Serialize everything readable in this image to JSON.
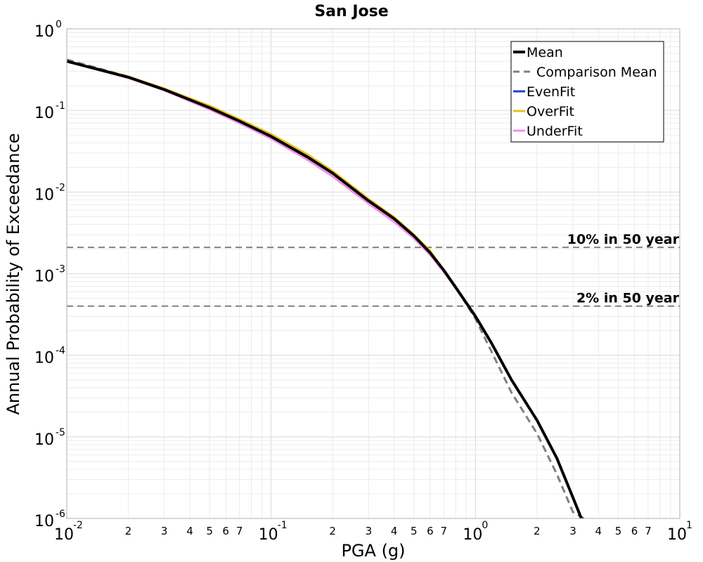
{
  "chart_data": {
    "type": "line",
    "title": "San Jose",
    "xlabel": "PGA (g)",
    "ylabel": "Annual Probability of Exceedance",
    "xscale": "log",
    "yscale": "log",
    "xlim": [
      0.01,
      10
    ],
    "ylim": [
      1e-06,
      1
    ],
    "grid": true,
    "legend_position": "top-right",
    "x_major_ticks": [
      {
        "value": 0.01,
        "base": "10",
        "exp": "-2"
      },
      {
        "value": 0.1,
        "base": "10",
        "exp": "-1"
      },
      {
        "value": 1,
        "base": "10",
        "exp": "0"
      },
      {
        "value": 10,
        "base": "10",
        "exp": "1"
      }
    ],
    "x_minor_ticks": [
      {
        "value": 0.02,
        "label": "2"
      },
      {
        "value": 0.03,
        "label": "3"
      },
      {
        "value": 0.04,
        "label": "4"
      },
      {
        "value": 0.05,
        "label": "5"
      },
      {
        "value": 0.06,
        "label": "6"
      },
      {
        "value": 0.07,
        "label": "7"
      },
      {
        "value": 0.2,
        "label": "2"
      },
      {
        "value": 0.3,
        "label": "3"
      },
      {
        "value": 0.4,
        "label": "4"
      },
      {
        "value": 0.5,
        "label": "5"
      },
      {
        "value": 0.6,
        "label": "6"
      },
      {
        "value": 0.7,
        "label": "7"
      },
      {
        "value": 2,
        "label": "2"
      },
      {
        "value": 3,
        "label": "3"
      },
      {
        "value": 4,
        "label": "4"
      },
      {
        "value": 5,
        "label": "5"
      },
      {
        "value": 6,
        "label": "6"
      },
      {
        "value": 7,
        "label": "7"
      }
    ],
    "y_major_ticks": [
      {
        "value": 1,
        "base": "10",
        "exp": "0"
      },
      {
        "value": 0.1,
        "base": "10",
        "exp": "-1"
      },
      {
        "value": 0.01,
        "base": "10",
        "exp": "-2"
      },
      {
        "value": 0.001,
        "base": "10",
        "exp": "-3"
      },
      {
        "value": 0.0001,
        "base": "10",
        "exp": "-4"
      },
      {
        "value": 1e-05,
        "base": "10",
        "exp": "-5"
      },
      {
        "value": 1e-06,
        "base": "10",
        "exp": "-6"
      }
    ],
    "reference_lines": [
      {
        "label": "10% in 50 year",
        "y": 0.0021,
        "color": "#808080"
      },
      {
        "label": "2% in 50 year",
        "y": 0.0004,
        "color": "#808080"
      }
    ],
    "series": [
      {
        "name": "Comparison Mean",
        "color": "#808080",
        "style": "dashed",
        "x": [
          0.01,
          0.02,
          0.03,
          0.05,
          0.07,
          0.1,
          0.15,
          0.2,
          0.3,
          0.4,
          0.5,
          0.6,
          0.7,
          0.8,
          1.0,
          1.2,
          1.5,
          2.0,
          2.5,
          3.0,
          3.4
        ],
        "y": [
          0.42,
          0.26,
          0.18,
          0.11,
          0.075,
          0.05,
          0.029,
          0.018,
          0.0082,
          0.0049,
          0.003,
          0.0018,
          0.0011,
          0.00068,
          0.00028,
          0.00011,
          3.5e-05,
          1.1e-05,
          3.5e-06,
          1.2e-06,
          1e-06
        ]
      },
      {
        "name": "EvenFit",
        "color": "#1f3bdb",
        "style": "solid",
        "x": [
          0.01,
          0.02,
          0.03,
          0.05,
          0.07,
          0.1,
          0.15,
          0.2,
          0.3,
          0.4,
          0.5,
          0.6,
          0.7,
          0.8,
          1.0,
          1.2,
          1.5,
          2.0
        ],
        "y": [
          0.4,
          0.255,
          0.18,
          0.108,
          0.074,
          0.048,
          0.027,
          0.017,
          0.0078,
          0.0047,
          0.0029,
          0.0018,
          0.0011,
          0.00068,
          0.0003,
          0.00014,
          5e-05,
          1.6e-05
        ]
      },
      {
        "name": "OverFit",
        "color": "#e5c319",
        "style": "solid",
        "x": [
          0.01,
          0.02,
          0.03,
          0.05,
          0.07,
          0.1,
          0.15,
          0.2,
          0.3,
          0.4,
          0.5,
          0.6,
          0.7,
          0.8,
          1.0,
          1.2,
          1.5,
          2.0
        ],
        "y": [
          0.4,
          0.26,
          0.185,
          0.114,
          0.078,
          0.051,
          0.029,
          0.018,
          0.0082,
          0.0049,
          0.003,
          0.0019,
          0.0011,
          0.00069,
          0.0003,
          0.00014,
          5e-05,
          1.6e-05
        ]
      },
      {
        "name": "UnderFit",
        "color": "#f58ee8",
        "style": "solid",
        "x": [
          0.01,
          0.02,
          0.03,
          0.05,
          0.07,
          0.1,
          0.15,
          0.2,
          0.3,
          0.4,
          0.5,
          0.6,
          0.7,
          0.8,
          1.0,
          1.2,
          1.5,
          2.0
        ],
        "y": [
          0.4,
          0.25,
          0.176,
          0.103,
          0.07,
          0.045,
          0.025,
          0.0155,
          0.0072,
          0.0043,
          0.0027,
          0.0017,
          0.00105,
          0.00066,
          0.0003,
          0.00014,
          5e-05,
          1.6e-05
        ]
      },
      {
        "name": "Mean",
        "color": "#000000",
        "style": "solid",
        "x": [
          0.01,
          0.02,
          0.03,
          0.05,
          0.07,
          0.1,
          0.15,
          0.2,
          0.3,
          0.4,
          0.5,
          0.6,
          0.7,
          0.8,
          1.0,
          1.2,
          1.5,
          2.0,
          2.5,
          3.0,
          3.3
        ],
        "y": [
          0.4,
          0.255,
          0.18,
          0.108,
          0.074,
          0.048,
          0.027,
          0.017,
          0.0078,
          0.0047,
          0.0029,
          0.0018,
          0.0011,
          0.00068,
          0.0003,
          0.00014,
          5e-05,
          1.6e-05,
          5.5e-06,
          1.8e-06,
          1e-06
        ]
      }
    ],
    "legend": [
      {
        "label": "Mean",
        "color": "#000000",
        "style": "solid"
      },
      {
        "label": "Comparison Mean",
        "color": "#808080",
        "style": "dashed"
      },
      {
        "label": "EvenFit",
        "color": "#1f3bdb",
        "style": "solid"
      },
      {
        "label": "OverFit",
        "color": "#e5c319",
        "style": "solid"
      },
      {
        "label": "UnderFit",
        "color": "#f58ee8",
        "style": "solid"
      }
    ]
  }
}
